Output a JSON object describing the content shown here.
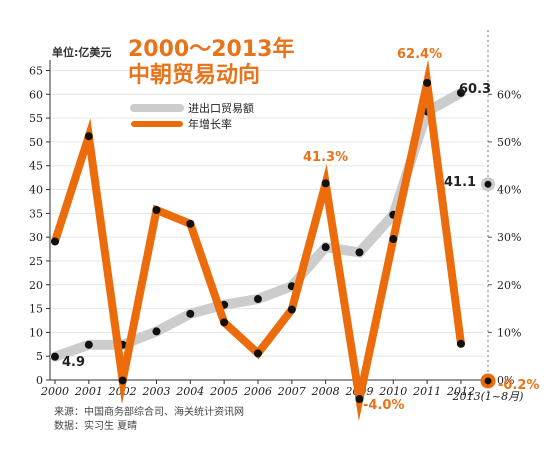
{
  "chart_data": {
    "type": "line",
    "title_line1": "2000～2013年",
    "title_line2": "中朝贸易动向",
    "unit_label": "单位:亿美元",
    "categories": [
      "2000",
      "2001",
      "2002",
      "2003",
      "2004",
      "2005",
      "2006",
      "2007",
      "2008",
      "2009",
      "2010",
      "2011",
      "2012"
    ],
    "extra_category": "2013(1~8月)",
    "left_axis": {
      "min": 0,
      "max": 65,
      "ticks": [
        0,
        5,
        10,
        15,
        20,
        25,
        30,
        35,
        40,
        45,
        50,
        55,
        60,
        65
      ]
    },
    "right_axis": {
      "min": 0,
      "max": 65,
      "tick_labels": [
        "0%",
        "10%",
        "20%",
        "30%",
        "40%",
        "50%",
        "60%"
      ]
    },
    "series": [
      {
        "name": "进出口贸易额",
        "axis": "left",
        "color": "#cccccc",
        "values": [
          4.9,
          7.4,
          7.4,
          10.2,
          13.9,
          15.8,
          17,
          19.7,
          27.9,
          26.8,
          34.7,
          56.4,
          60.3
        ],
        "extra_value": 41.1
      },
      {
        "name": "年增长率",
        "axis": "right",
        "color": "#ec6c0c",
        "values": [
          29.1,
          51.2,
          -0.1,
          35.7,
          32.8,
          12.1,
          5.6,
          14.8,
          41.3,
          -4.0,
          29.6,
          62.4,
          7.6
        ],
        "extra_value": -0.2
      }
    ],
    "annotations": [
      {
        "text": "4.9",
        "style": "dark"
      },
      {
        "text": "60.3",
        "style": "dark"
      },
      {
        "text": "41.1",
        "style": "dark"
      },
      {
        "text": "41.3%",
        "style": "orange"
      },
      {
        "text": "62.4%",
        "style": "orange"
      },
      {
        "text": "-4.0%",
        "style": "orange"
      },
      {
        "text": "-0.2%",
        "style": "orange"
      }
    ],
    "legend_position": "top-left",
    "source_line1": "来源：中国商务部综合司、海关统计资讯网",
    "source_line2": "数据：实习生 夏晴"
  }
}
